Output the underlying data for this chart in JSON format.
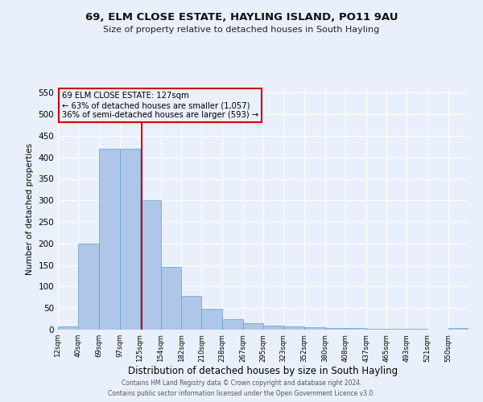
{
  "title": "69, ELM CLOSE ESTATE, HAYLING ISLAND, PO11 9AU",
  "subtitle": "Size of property relative to detached houses in South Hayling",
  "xlabel": "Distribution of detached houses by size in South Hayling",
  "ylabel": "Number of detached properties",
  "footnote1": "Contains HM Land Registry data © Crown copyright and database right 2024.",
  "footnote2": "Contains public sector information licensed under the Open Government Licence v3.0.",
  "annotation_line1": "69 ELM CLOSE ESTATE: 127sqm",
  "annotation_line2": "← 63% of detached houses are smaller (1,057)",
  "annotation_line3": "36% of semi-detached houses are larger (593) →",
  "property_size": 127,
  "bin_edges": [
    12,
    40,
    69,
    97,
    125,
    154,
    182,
    210,
    238,
    267,
    295,
    323,
    352,
    380,
    408,
    437,
    465,
    493,
    521,
    550,
    578
  ],
  "bar_heights": [
    8,
    200,
    420,
    420,
    300,
    145,
    78,
    48,
    25,
    15,
    10,
    8,
    5,
    4,
    3,
    2,
    1,
    1,
    0,
    4
  ],
  "bar_color": "#aec6e8",
  "bar_edgecolor": "#5a9fd4",
  "vline_color": "#cc0000",
  "vline_x": 127,
  "annotation_box_edgecolor": "#cc0000",
  "background_color": "#eaf0fb",
  "ylim": [
    0,
    560
  ],
  "yticks": [
    0,
    50,
    100,
    150,
    200,
    250,
    300,
    350,
    400,
    450,
    500,
    550
  ]
}
